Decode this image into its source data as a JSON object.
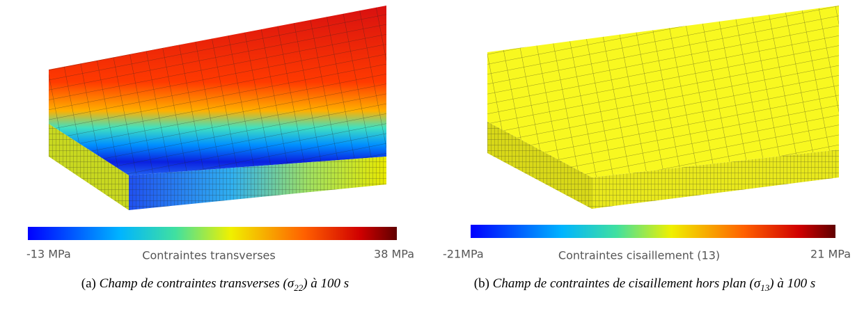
{
  "panels": [
    {
      "colorbar": {
        "min_label": "-13 MPa",
        "title": "Contraintes transverses",
        "max_label": "38 MPa"
      },
      "caption": {
        "label": "(a)",
        "text": "Champ de contraintes transverses (",
        "symbol": "σ",
        "subscript": "22",
        "suffix": ") à 100 s"
      }
    },
    {
      "colorbar": {
        "min_label": "-21MPa",
        "title": "Contraintes cisaillement (13)",
        "max_label": "21 MPa"
      },
      "caption": {
        "label": "(b)",
        "text": "Champ de contraintes de cisaillement hors plan (",
        "symbol": "σ",
        "subscript": "13",
        "suffix": ") à 100 s"
      }
    }
  ]
}
